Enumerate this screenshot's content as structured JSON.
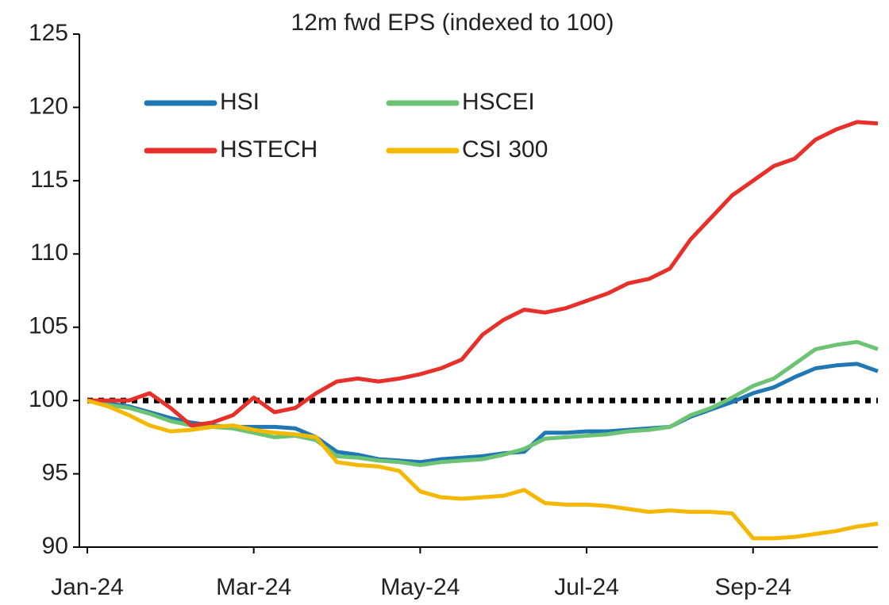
{
  "chart_data": {
    "type": "line",
    "title": "12m fwd EPS (indexed to 100)",
    "categories": [
      "Jan-24",
      null,
      null,
      null,
      null,
      null,
      null,
      null,
      "Mar-24",
      null,
      null,
      null,
      null,
      null,
      null,
      null,
      "May-24",
      null,
      null,
      null,
      null,
      null,
      null,
      null,
      "Jul-24",
      null,
      null,
      null,
      null,
      null,
      null,
      null,
      "Sep-24",
      null,
      null,
      null,
      null,
      null,
      null
    ],
    "series": [
      {
        "name": "HSI",
        "color": "#1f77b4",
        "values": [
          100,
          99.8,
          99.6,
          99.2,
          98.8,
          98.5,
          98.3,
          98.2,
          98.2,
          98.2,
          98.1,
          97.5,
          96.5,
          96.3,
          96,
          95.9,
          95.8,
          96,
          96.1,
          96.2,
          96.4,
          96.5,
          97.8,
          97.8,
          97.9,
          97.9,
          98,
          98.1,
          98.2,
          98.9,
          99.4,
          99.9,
          100.5,
          100.9,
          101.6,
          102.2,
          102.4,
          102.5,
          102
        ]
      },
      {
        "name": "HSCEI",
        "color": "#6cc374",
        "values": [
          100,
          99.7,
          99.5,
          99.1,
          98.6,
          98.3,
          98.2,
          98.1,
          97.8,
          97.5,
          97.6,
          97.3,
          96.2,
          96.1,
          95.9,
          95.8,
          95.6,
          95.8,
          95.9,
          96,
          96.3,
          96.7,
          97.4,
          97.5,
          97.6,
          97.7,
          97.9,
          98,
          98.2,
          99,
          99.5,
          100.2,
          101,
          101.5,
          102.5,
          103.5,
          103.8,
          104,
          103.5
        ]
      },
      {
        "name": "HSTECH",
        "color": "#e8302a",
        "values": [
          100,
          100,
          100,
          100.5,
          99.5,
          98.3,
          98.5,
          99,
          100.2,
          99.2,
          99.5,
          100.5,
          101.3,
          101.5,
          101.3,
          101.5,
          101.8,
          102.2,
          102.8,
          104.5,
          105.5,
          106.2,
          106,
          106.3,
          106.8,
          107.3,
          108,
          108.3,
          109,
          111,
          112.5,
          114,
          115,
          116,
          116.5,
          117.8,
          118.5,
          119,
          118.9
        ]
      },
      {
        "name": "CSI 300",
        "color": "#f5b800",
        "values": [
          100,
          99.6,
          99,
          98.3,
          97.9,
          98,
          98.2,
          98.3,
          98,
          97.8,
          97.7,
          97.5,
          95.8,
          95.6,
          95.5,
          95.2,
          93.8,
          93.4,
          93.3,
          93.4,
          93.5,
          93.9,
          93,
          92.9,
          92.9,
          92.8,
          92.6,
          92.4,
          92.5,
          92.4,
          92.4,
          92.3,
          90.6,
          90.6,
          90.7,
          90.9,
          91.1,
          91.4,
          91.6
        ]
      }
    ],
    "reference_line": 100,
    "ylim": [
      90,
      125
    ],
    "yticks": [
      90,
      95,
      100,
      105,
      110,
      115,
      120,
      125
    ],
    "grid": false
  }
}
